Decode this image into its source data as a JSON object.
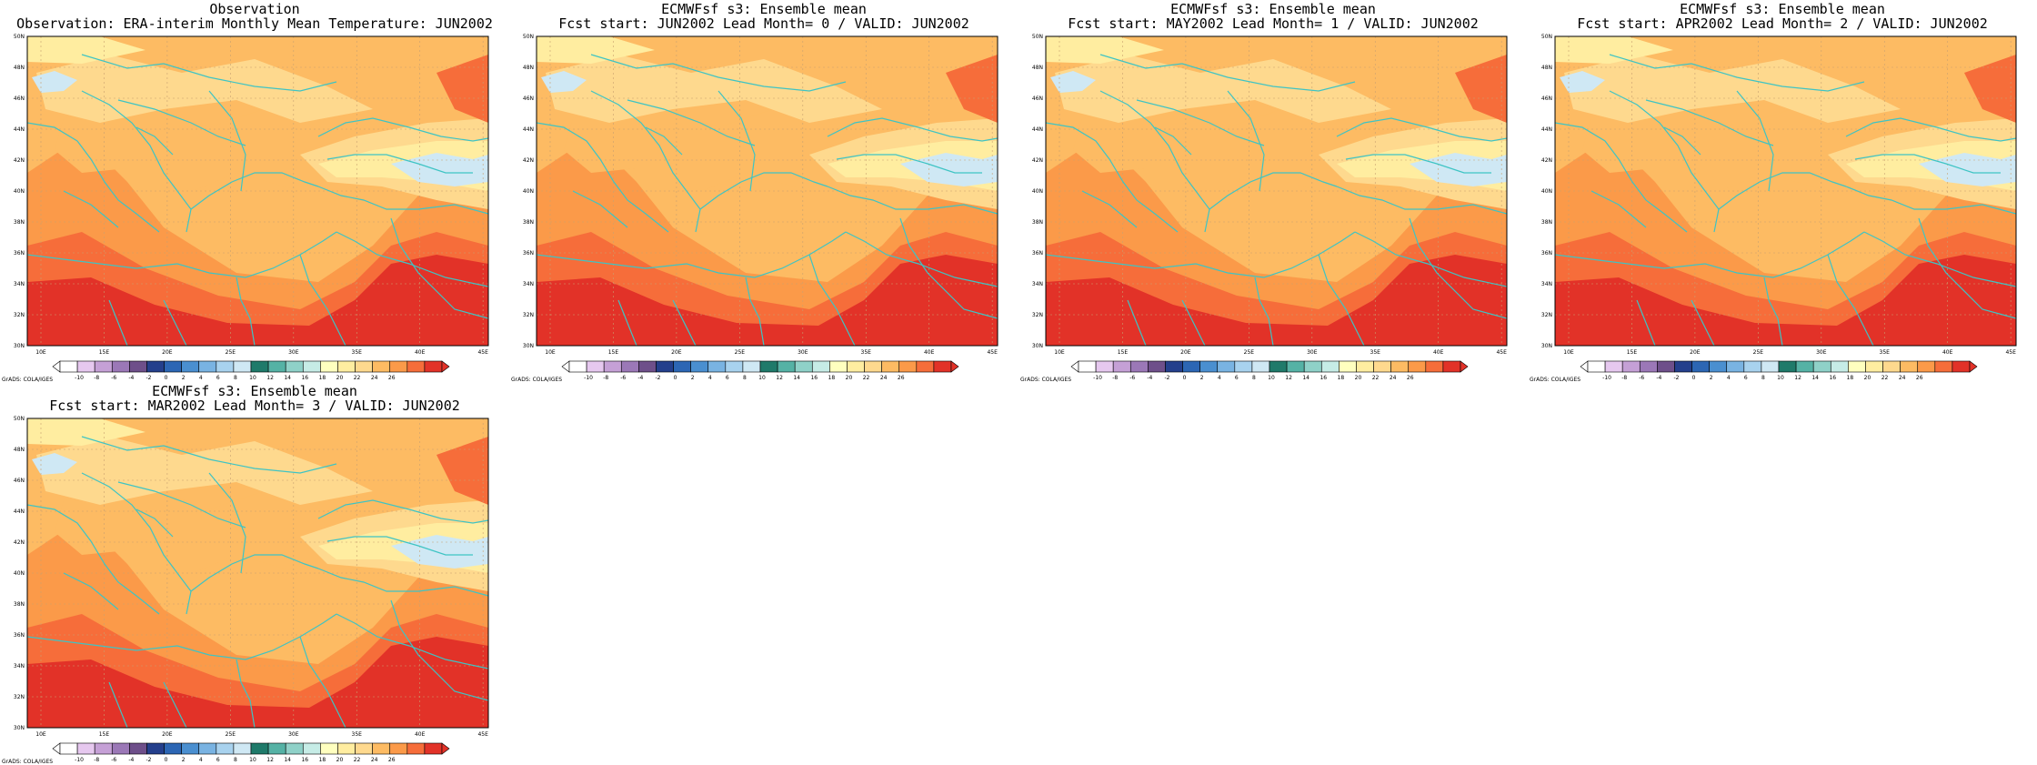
{
  "colors": [
    "#ffffff",
    "#e6c8ef",
    "#c5a0d6",
    "#9b78b7",
    "#6e4f8a",
    "#243f8c",
    "#2c66b4",
    "#4a8fd0",
    "#79b3e2",
    "#a8d2ee",
    "#cfe8f4",
    "#1f7a6a",
    "#55b2a5",
    "#8fd1c8",
    "#c6ece6",
    "#ffffbf",
    "#ffeda0",
    "#fed98e",
    "#fdbb63",
    "#fb9a49",
    "#f66d3a",
    "#e23228"
  ],
  "colorbar_labels": [
    "-10",
    "-8",
    "-6",
    "-4",
    "-2",
    "0",
    "2",
    "4",
    "6",
    "8",
    "10",
    "12",
    "14",
    "16",
    "18",
    "20",
    "22",
    "24",
    "26"
  ],
  "lon_labels": [
    "10E",
    "15E",
    "20E",
    "25E",
    "30E",
    "35E",
    "40E",
    "45E"
  ],
  "lat_labels": [
    "30N",
    "32N",
    "34N",
    "36N",
    "38N",
    "40N",
    "42N",
    "44N",
    "46N",
    "48N",
    "50N"
  ],
  "credit": "GrADS: COLA/IGES",
  "panels": [
    {
      "title1": "Observation",
      "title2": "Observation: ERA-interim Monthly Mean Temperature: JUN2002"
    },
    {
      "title1": "ECMWFsf s3: Ensemble mean",
      "title2": "Fcst start: JUN2002  Lead Month= 0 / VALID: JUN2002"
    },
    {
      "title1": "ECMWFsf s3: Ensemble mean",
      "title2": "Fcst start: MAY2002  Lead Month= 1 / VALID: JUN2002"
    },
    {
      "title1": "ECMWFsf s3: Ensemble mean",
      "title2": "Fcst start: APR2002  Lead Month= 2 / VALID: JUN2002"
    },
    {
      "title1": "ECMWFsf s3: Ensemble mean",
      "title2": "Fcst start: MAR2002  Lead Month= 3 / VALID: JUN2002"
    }
  ]
}
